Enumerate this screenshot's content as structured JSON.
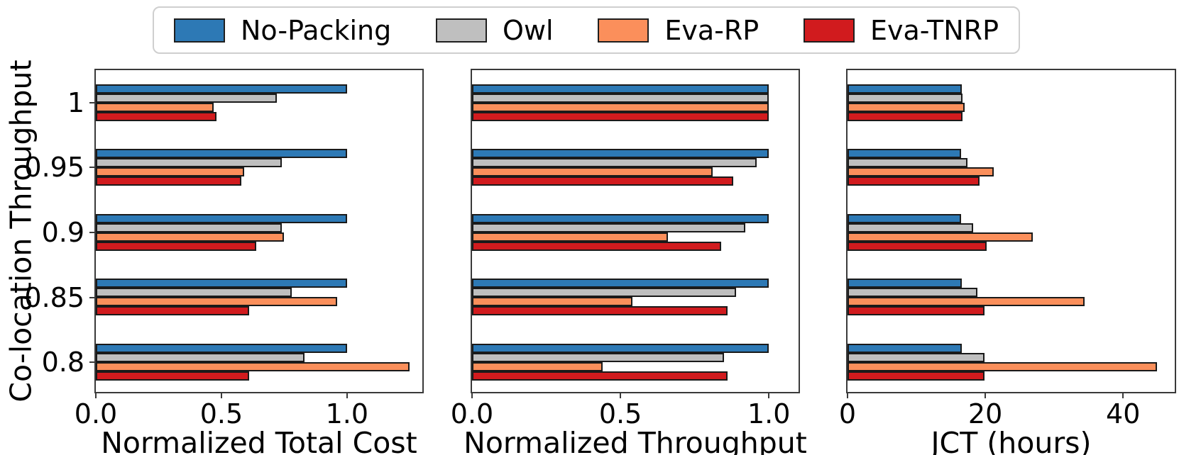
{
  "ylabel": "Co-location Throughput",
  "legend": {
    "items": [
      {
        "label": "No-Packing",
        "color": "#2d79b5"
      },
      {
        "label": "Owl",
        "color": "#bfbfbf"
      },
      {
        "label": "Eva-RP",
        "color": "#fb8f5b"
      },
      {
        "label": "Eva-TNRP",
        "color": "#d11b1e"
      }
    ]
  },
  "chart_data": [
    {
      "type": "bar",
      "orientation": "horizontal",
      "title": "",
      "xlabel": "Normalized Total Cost",
      "ylabel": "Co-location Throughput",
      "categories": [
        "1",
        "0.95",
        "0.9",
        "0.85",
        "0.8"
      ],
      "series": [
        {
          "name": "No-Packing",
          "color": "#2d79b5",
          "values": [
            1.0,
            1.0,
            1.0,
            1.0,
            1.0
          ]
        },
        {
          "name": "Owl",
          "color": "#bfbfbf",
          "values": [
            0.72,
            0.74,
            0.74,
            0.78,
            0.83
          ]
        },
        {
          "name": "Eva-RP",
          "color": "#fb8f5b",
          "values": [
            0.47,
            0.59,
            0.75,
            0.96,
            1.25
          ]
        },
        {
          "name": "Eva-TNRP",
          "color": "#d11b1e",
          "values": [
            0.48,
            0.58,
            0.64,
            0.61,
            0.61
          ]
        }
      ],
      "xlim": [
        0,
        1.3
      ],
      "xticks": [
        0,
        0.5,
        1.0
      ],
      "xtick_labels": [
        "0.0",
        "0.5",
        "1.0"
      ],
      "grid": false,
      "legend_position": "top-outside"
    },
    {
      "type": "bar",
      "orientation": "horizontal",
      "title": "",
      "xlabel": "Normalized Throughput",
      "ylabel": "Co-location Throughput",
      "categories": [
        "1",
        "0.95",
        "0.9",
        "0.85",
        "0.8"
      ],
      "series": [
        {
          "name": "No-Packing",
          "color": "#2d79b5",
          "values": [
            1.0,
            1.0,
            1.0,
            1.0,
            1.0
          ]
        },
        {
          "name": "Owl",
          "color": "#bfbfbf",
          "values": [
            1.0,
            0.96,
            0.92,
            0.89,
            0.85
          ]
        },
        {
          "name": "Eva-RP",
          "color": "#fb8f5b",
          "values": [
            1.0,
            0.81,
            0.66,
            0.54,
            0.44
          ]
        },
        {
          "name": "Eva-TNRP",
          "color": "#d11b1e",
          "values": [
            1.0,
            0.88,
            0.84,
            0.86,
            0.86
          ]
        }
      ],
      "xlim": [
        0,
        1.1
      ],
      "xticks": [
        0,
        0.5,
        1.0
      ],
      "xtick_labels": [
        "0.0",
        "0.5",
        "1.0"
      ],
      "grid": false,
      "legend_position": "top-outside"
    },
    {
      "type": "bar",
      "orientation": "horizontal",
      "title": "",
      "xlabel": "JCT (hours)",
      "ylabel": "Co-location Throughput",
      "categories": [
        "1",
        "0.95",
        "0.9",
        "0.85",
        "0.8"
      ],
      "series": [
        {
          "name": "No-Packing",
          "color": "#2d79b5",
          "values": [
            16.6,
            16.5,
            16.5,
            16.6,
            16.6
          ]
        },
        {
          "name": "Owl",
          "color": "#bfbfbf",
          "values": [
            16.7,
            17.4,
            18.2,
            18.9,
            19.9
          ]
        },
        {
          "name": "Eva-RP",
          "color": "#fb8f5b",
          "values": [
            17.0,
            21.2,
            26.9,
            34.4,
            44.9
          ]
        },
        {
          "name": "Eva-TNRP",
          "color": "#d11b1e",
          "values": [
            16.7,
            19.2,
            20.2,
            19.9,
            19.9
          ]
        }
      ],
      "xlim": [
        0,
        47.5
      ],
      "xticks": [
        0,
        20,
        40
      ],
      "xtick_labels": [
        "0",
        "20",
        "40"
      ],
      "grid": false,
      "legend_position": "top-outside"
    }
  ]
}
